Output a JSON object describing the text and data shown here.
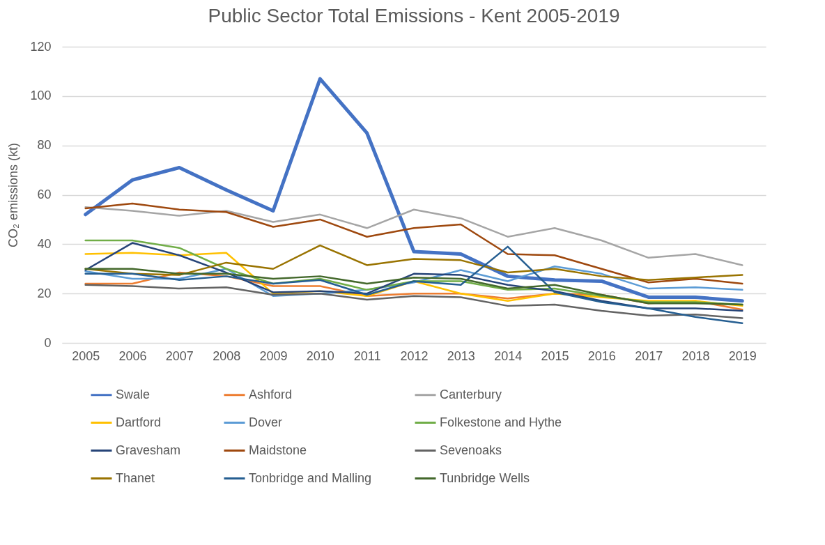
{
  "chart_data": {
    "type": "line",
    "title": "Public Sector Total Emissions - Kent 2005-2019",
    "ylabel": "CO₂ emissions (kt)",
    "categories": [
      "2005",
      "2006",
      "2007",
      "2008",
      "2009",
      "2010",
      "2011",
      "2012",
      "2013",
      "2014",
      "2015",
      "2016",
      "2017",
      "2018",
      "2019"
    ],
    "ylim": [
      0,
      120
    ],
    "yticks": [
      0,
      20,
      40,
      60,
      80,
      100,
      120
    ],
    "grid": "y",
    "legend": "bottom",
    "marker": "none",
    "line_style": "solid",
    "series": [
      {
        "name": "Swale",
        "color": "#4472c4",
        "values": [
          52,
          66,
          71,
          62,
          53.5,
          107,
          85,
          37,
          36,
          27,
          25.5,
          25,
          18.5,
          18.5,
          17
        ]
      },
      {
        "name": "Ashford",
        "color": "#ed7d31",
        "values": [
          24,
          24,
          28.5,
          27,
          23,
          23,
          19,
          20,
          20,
          18,
          20,
          19.5,
          16,
          17,
          13.5
        ]
      },
      {
        "name": "Canterbury",
        "color": "#a5a5a5",
        "values": [
          55,
          53.5,
          51.5,
          53.5,
          49,
          52,
          46.5,
          54,
          50.5,
          43,
          46.5,
          41.5,
          34.5,
          36,
          31.5
        ]
      },
      {
        "name": "Dartford",
        "color": "#ffc000",
        "values": [
          36,
          36.5,
          35.5,
          36.5,
          20,
          21,
          19,
          25,
          20,
          17,
          20,
          18.5,
          17,
          17,
          15
        ]
      },
      {
        "name": "Dover",
        "color": "#5b9bd5",
        "values": [
          29,
          26,
          26,
          30,
          19,
          20,
          21.5,
          24.5,
          29.5,
          25,
          31,
          28,
          22,
          22.5,
          21.5
        ]
      },
      {
        "name": "Folkestone and Hythe",
        "color": "#70ad47",
        "values": [
          41.5,
          41.5,
          38.5,
          30,
          24,
          26,
          21.5,
          25,
          25,
          21.5,
          22,
          19,
          16.5,
          16.5,
          15.5
        ]
      },
      {
        "name": "Gravesham",
        "color": "#264478",
        "values": [
          29.5,
          40.5,
          35.5,
          28.5,
          20.5,
          21,
          20,
          28,
          27.5,
          23.5,
          21,
          17,
          14,
          14,
          13
        ]
      },
      {
        "name": "Maidstone",
        "color": "#9e480e",
        "values": [
          54.5,
          56.5,
          54,
          53,
          47,
          50,
          43,
          46.5,
          48,
          36,
          35.5,
          30,
          24.5,
          26,
          24
        ]
      },
      {
        "name": "Sevenoaks",
        "color": "#636363",
        "values": [
          23.5,
          23,
          22,
          22.5,
          19.5,
          20,
          17.5,
          19,
          18.5,
          15,
          15.5,
          13,
          11,
          11.5,
          10
        ]
      },
      {
        "name": "Thanet",
        "color": "#997300",
        "values": [
          30,
          28,
          27.5,
          32.5,
          30,
          39.5,
          31.5,
          34,
          33.5,
          28.5,
          30,
          27,
          25.5,
          26.5,
          27.5
        ]
      },
      {
        "name": "Tonbridge and Malling",
        "color": "#255e91",
        "values": [
          28,
          28,
          25.5,
          27,
          24,
          25.5,
          19.5,
          25,
          23.5,
          39,
          20.5,
          16.5,
          14,
          10.5,
          8
        ]
      },
      {
        "name": "Tunbridge Wells",
        "color": "#43682b",
        "values": [
          30,
          30,
          28,
          28,
          26,
          27,
          24,
          26.5,
          26,
          22,
          23.5,
          19.5,
          16,
          16,
          15.5
        ]
      }
    ]
  }
}
